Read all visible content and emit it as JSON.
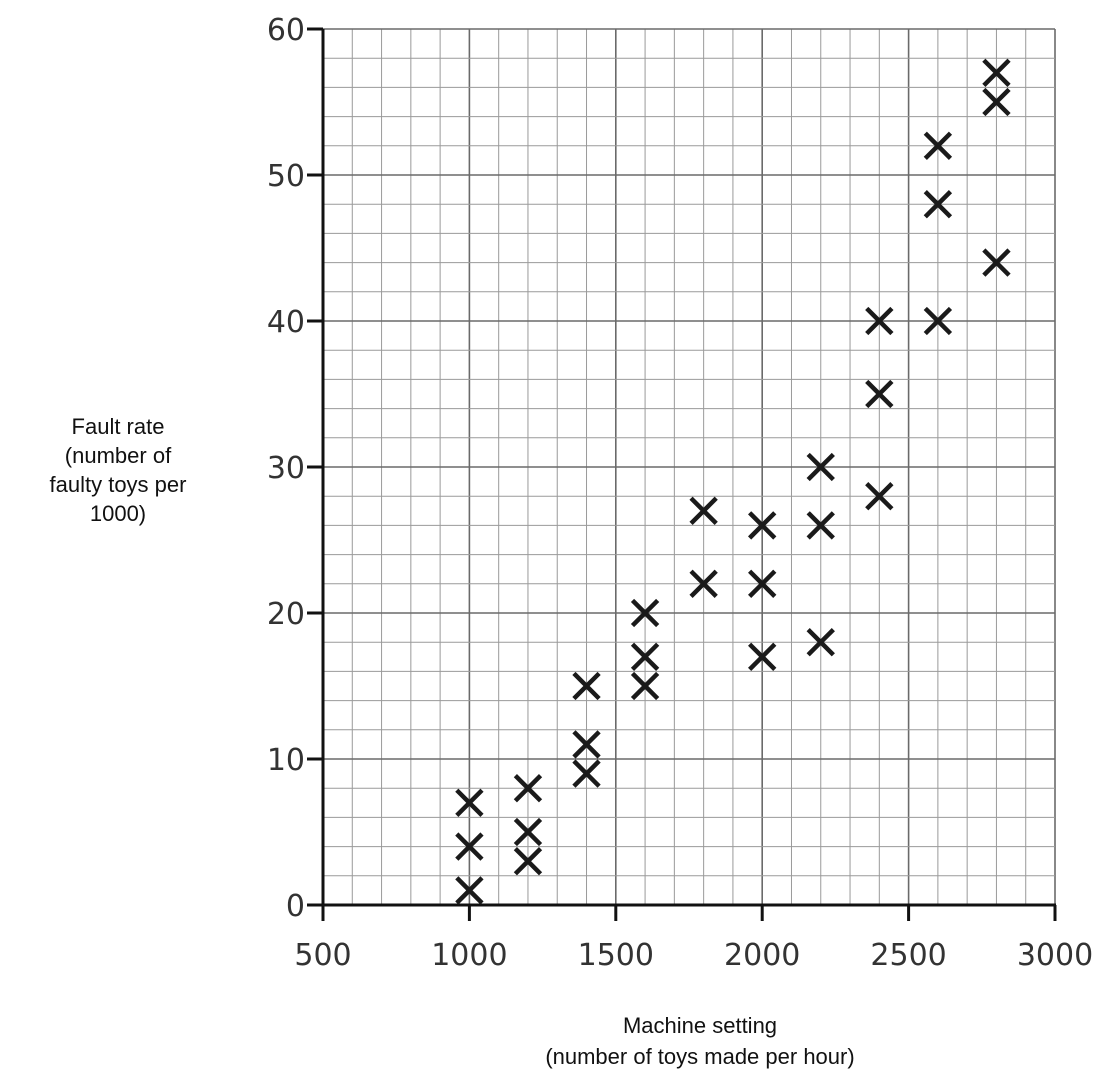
{
  "chart_data": {
    "type": "scatter",
    "title": "",
    "xlabel_lines": [
      "Machine setting",
      "(number of toys made per hour)"
    ],
    "ylabel_lines": [
      "Fault rate",
      "(number of",
      "faulty toys per",
      "1000)"
    ],
    "xlim": [
      500,
      3000
    ],
    "ylim": [
      0,
      60
    ],
    "x_ticks": [
      "500",
      "1000",
      "1500",
      "2000",
      "2500",
      "3000"
    ],
    "y_ticks": [
      "0",
      "10",
      "20",
      "30",
      "40",
      "50",
      "60"
    ],
    "grid": true,
    "minor_grid_step": {
      "x": 100,
      "y": 2
    },
    "major_grid_step": {
      "x": 500,
      "y": 10
    },
    "marker": "x",
    "points": [
      {
        "x": 1000,
        "y": 1
      },
      {
        "x": 1000,
        "y": 4
      },
      {
        "x": 1000,
        "y": 7
      },
      {
        "x": 1200,
        "y": 3
      },
      {
        "x": 1200,
        "y": 5
      },
      {
        "x": 1200,
        "y": 8
      },
      {
        "x": 1400,
        "y": 9
      },
      {
        "x": 1400,
        "y": 11
      },
      {
        "x": 1400,
        "y": 15
      },
      {
        "x": 1600,
        "y": 15
      },
      {
        "x": 1600,
        "y": 17
      },
      {
        "x": 1600,
        "y": 20
      },
      {
        "x": 1800,
        "y": 22
      },
      {
        "x": 1800,
        "y": 27
      },
      {
        "x": 2000,
        "y": 17
      },
      {
        "x": 2000,
        "y": 22
      },
      {
        "x": 2000,
        "y": 26
      },
      {
        "x": 2200,
        "y": 18
      },
      {
        "x": 2200,
        "y": 26
      },
      {
        "x": 2200,
        "y": 30
      },
      {
        "x": 2400,
        "y": 28
      },
      {
        "x": 2400,
        "y": 35
      },
      {
        "x": 2400,
        "y": 40
      },
      {
        "x": 2600,
        "y": 40
      },
      {
        "x": 2600,
        "y": 48
      },
      {
        "x": 2600,
        "y": 52
      },
      {
        "x": 2800,
        "y": 44
      },
      {
        "x": 2800,
        "y": 55
      },
      {
        "x": 2800,
        "y": 57
      }
    ],
    "colors": {
      "grid_minor": "#9a9a9a",
      "grid_major": "#6a6a6a",
      "axis": "#111111",
      "marker": "#1a1a1a",
      "tick_text": "#333333"
    }
  }
}
